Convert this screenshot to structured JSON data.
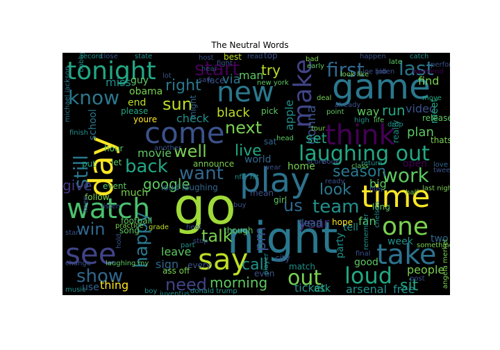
{
  "title": "The Neutral Words",
  "colors": {
    "background": "#000000",
    "palette": [
      "#440154",
      "#3b528b",
      "#21918c",
      "#5ec962",
      "#fde725"
    ]
  },
  "words": [
    {
      "text": "go",
      "color": "#a0da39"
    },
    {
      "text": "night",
      "color": "#2a788e"
    },
    {
      "text": "game",
      "color": "#2a788e"
    },
    {
      "text": "time",
      "color": "#fde725"
    },
    {
      "text": "day",
      "color": "#fde725"
    },
    {
      "text": "play",
      "color": "#2c728e"
    },
    {
      "text": "see",
      "color": "#414487"
    },
    {
      "text": "watch",
      "color": "#4ac16d"
    },
    {
      "text": "say",
      "color": "#bddf26"
    },
    {
      "text": "take",
      "color": "#2c728e"
    },
    {
      "text": "come",
      "color": "#3b528b"
    },
    {
      "text": "new",
      "color": "#2a788e"
    },
    {
      "text": "think",
      "color": "#440154"
    },
    {
      "text": "tonight",
      "color": "#22a884"
    },
    {
      "text": "make",
      "color": "#414487"
    },
    {
      "text": "one",
      "color": "#7ad151"
    },
    {
      "text": "laughing out",
      "color": "#22a884"
    },
    {
      "text": "first",
      "color": "#31688e"
    },
    {
      "text": "last",
      "color": "#2a788e"
    },
    {
      "text": "start",
      "color": "#440154"
    },
    {
      "text": "know",
      "color": "#2a788e"
    },
    {
      "text": "still",
      "color": "#2a788e"
    },
    {
      "text": "loud",
      "color": "#22a884"
    },
    {
      "text": "out",
      "color": "#7ad151"
    },
    {
      "text": "work",
      "color": "#5ec962"
    },
    {
      "text": "team",
      "color": "#21918c"
    },
    {
      "text": "talk",
      "color": "#7ad151"
    },
    {
      "text": "back",
      "color": "#22a884"
    },
    {
      "text": "want",
      "color": "#31688e"
    },
    {
      "text": "well",
      "color": "#7ad151"
    },
    {
      "text": "win",
      "color": "#31688e"
    },
    {
      "text": "happy",
      "color": "#2a788e"
    },
    {
      "text": "show",
      "color": "#31688e"
    },
    {
      "text": "need",
      "color": "#414487"
    },
    {
      "text": "call",
      "color": "#21918c"
    },
    {
      "text": "morning",
      "color": "#5ec962"
    },
    {
      "text": "next",
      "color": "#7ad151"
    },
    {
      "text": "live",
      "color": "#22a884"
    },
    {
      "text": "season",
      "color": "#2a788e"
    },
    {
      "text": "sun",
      "color": "#bddf26"
    },
    {
      "text": "right",
      "color": "#2a788e"
    },
    {
      "text": "pm",
      "color": "#3b528b"
    },
    {
      "text": "us",
      "color": "#31688e"
    },
    {
      "text": "year",
      "color": "#482878"
    },
    {
      "text": "look",
      "color": "#2a788e"
    },
    {
      "text": "run",
      "color": "#22a884"
    },
    {
      "text": "google",
      "color": "#5ec962"
    },
    {
      "text": "give",
      "color": "#443983"
    },
    {
      "text": "sit",
      "color": "#22a884"
    },
    {
      "text": "try",
      "color": "#bddf26"
    },
    {
      "text": "gonna",
      "color": "#3b528b"
    },
    {
      "text": "via",
      "color": "#2a788e"
    },
    {
      "text": "set",
      "color": "#22a884"
    },
    {
      "text": "find",
      "color": "#7ad151"
    },
    {
      "text": "plan",
      "color": "#5ec962"
    },
    {
      "text": "people",
      "color": "#7ad151"
    },
    {
      "text": "ticket",
      "color": "#21918c"
    },
    {
      "text": "arsenal",
      "color": "#21918c"
    },
    {
      "text": "free",
      "color": "#21918c"
    },
    {
      "text": "video",
      "color": "#3b528b"
    },
    {
      "text": "meet",
      "color": "#22a884"
    },
    {
      "text": "black",
      "color": "#bddf26"
    },
    {
      "text": "movie",
      "color": "#5ec962"
    },
    {
      "text": "thing",
      "color": "#fde725"
    },
    {
      "text": "check",
      "color": "#21918c"
    },
    {
      "text": "sign",
      "color": "#31688e"
    },
    {
      "text": "leave",
      "color": "#5ec962"
    },
    {
      "text": "apple",
      "color": "#21918c"
    },
    {
      "text": "way",
      "color": "#5ec962"
    },
    {
      "text": "fan",
      "color": "#5ec962"
    },
    {
      "text": "home",
      "color": "#7ad151"
    },
    {
      "text": "week",
      "color": "#21918c"
    },
    {
      "text": "school",
      "color": "#2a788e"
    },
    {
      "text": "end",
      "color": "#bddf26"
    },
    {
      "text": "man",
      "color": "#5ec962"
    },
    {
      "text": "miss",
      "color": "#21918c"
    },
    {
      "text": "guy",
      "color": "#5ec962"
    },
    {
      "text": "obama",
      "color": "#7ad151"
    },
    {
      "text": "tell",
      "color": "#21918c"
    },
    {
      "text": "lead",
      "color": "#31688e"
    },
    {
      "text": "two",
      "color": "#31688e"
    },
    {
      "text": "big",
      "color": "#5ec962"
    },
    {
      "text": "good",
      "color": "#5ec962"
    },
    {
      "text": "open",
      "color": "#440154"
    },
    {
      "text": "party",
      "color": "#21918c"
    },
    {
      "text": "even",
      "color": "#3b528b"
    },
    {
      "text": "ask",
      "color": "#22a884"
    },
    {
      "text": "hope",
      "color": "#fde725"
    },
    {
      "text": "sat",
      "color": "#31688e"
    },
    {
      "text": "use",
      "color": "#31688e"
    },
    {
      "text": "much",
      "color": "#7ad151"
    },
    {
      "text": "event",
      "color": "#5ec962"
    },
    {
      "text": "follow",
      "color": "#7ad151"
    },
    {
      "text": "youre",
      "color": "#fde725"
    },
    {
      "text": "please",
      "color": "#22a884"
    },
    {
      "text": "might",
      "color": "#31688e"
    },
    {
      "text": "world",
      "color": "#31688e"
    },
    {
      "text": "announce",
      "color": "#7ad151"
    },
    {
      "text": "though",
      "color": "#5ec962"
    },
    {
      "text": "pick",
      "color": "#5ec962"
    },
    {
      "text": "release",
      "color": "#5ec962"
    },
    {
      "text": "thats",
      "color": "#7ad151"
    },
    {
      "text": "loud laughing",
      "color": "#31688e"
    },
    {
      "text": "football",
      "color": "#5ec962"
    },
    {
      "text": "song",
      "color": "#5ec962"
    },
    {
      "text": "grade",
      "color": "#bddf26"
    },
    {
      "text": "best",
      "color": "#bddf26"
    },
    {
      "text": "top",
      "color": "#3b528b"
    },
    {
      "text": "face",
      "color": "#3b528b"
    },
    {
      "text": "new york",
      "color": "#5ec962"
    },
    {
      "text": "look like",
      "color": "#7ad151"
    },
    {
      "text": "let",
      "color": "#5ec962"
    },
    {
      "text": "hour",
      "color": "#5ec962"
    },
    {
      "text": "put",
      "color": "#22a884"
    },
    {
      "text": "donald trump",
      "color": "#21918c"
    },
    {
      "text": "ass off",
      "color": "#7ad151"
    },
    {
      "text": "every",
      "color": "#3b528b"
    },
    {
      "text": "match",
      "color": "#21918c"
    },
    {
      "text": "city",
      "color": "#3b528b"
    },
    {
      "text": "laughing my",
      "color": "#5ec962"
    },
    {
      "text": "girl",
      "color": "#5ec962"
    },
    {
      "text": "really",
      "color": "#21918c"
    },
    {
      "text": "long",
      "color": "#5ec962"
    },
    {
      "text": "half",
      "color": "#7ad151"
    },
    {
      "text": "last night",
      "color": "#7ad151"
    },
    {
      "text": "something",
      "color": "#7ad151"
    },
    {
      "text": "michael jackson",
      "color": "#2a788e"
    },
    {
      "text": "record",
      "color": "#21918c"
    },
    {
      "text": "close",
      "color": "#3b528b"
    },
    {
      "text": "state",
      "color": "#21918c"
    },
    {
      "text": "catch",
      "color": "#21918c"
    },
    {
      "text": "late",
      "color": "#5ec962"
    },
    {
      "text": "bad",
      "color": "#7ad151"
    },
    {
      "text": "early",
      "color": "#5ec962"
    },
    {
      "text": "deal",
      "color": "#7ad151"
    },
    {
      "text": "already",
      "color": "#3b528b"
    },
    {
      "text": "move",
      "color": "#22a884"
    },
    {
      "text": "point",
      "color": "#5ec962"
    },
    {
      "text": "head",
      "color": "#5ec962"
    },
    {
      "text": "score",
      "color": "#3b528b"
    },
    {
      "text": "book",
      "color": "#3b528b"
    },
    {
      "text": "return",
      "color": "#21918c"
    },
    {
      "text": "class",
      "color": "#5ec962"
    },
    {
      "text": "tour",
      "color": "#7ad151"
    },
    {
      "text": "high",
      "color": "#21918c"
    },
    {
      "text": "life",
      "color": "#5ec962"
    },
    {
      "text": "drop",
      "color": "#21918c"
    },
    {
      "text": "love",
      "color": "#31688e"
    },
    {
      "text": "tweet",
      "color": "#3b528b"
    },
    {
      "text": "weekend",
      "color": "#440154"
    },
    {
      "text": "finish",
      "color": "#21918c"
    },
    {
      "text": "nfl",
      "color": "#21918c"
    },
    {
      "text": "hit",
      "color": "#21918c"
    },
    {
      "text": "wear",
      "color": "#3b528b"
    },
    {
      "text": "mean",
      "color": "#3b528b"
    },
    {
      "text": "buy",
      "color": "#3b528b"
    },
    {
      "text": "ready",
      "color": "#3b528b"
    },
    {
      "text": "film",
      "color": "#3b528b"
    },
    {
      "text": "star",
      "color": "#3b528b"
    },
    {
      "text": "practice",
      "color": "#7ad151"
    },
    {
      "text": "heat",
      "color": "#3b528b"
    },
    {
      "text": "part",
      "color": "#21918c"
    },
    {
      "text": "stop",
      "color": "#3b528b"
    },
    {
      "text": "change",
      "color": "#3b528b"
    },
    {
      "text": "music",
      "color": "#21918c"
    },
    {
      "text": "boy",
      "color": "#21918c"
    },
    {
      "text": "juventus",
      "color": "#21918c"
    },
    {
      "text": "remember",
      "color": "#21918c"
    },
    {
      "text": "final",
      "color": "#3b528b"
    },
    {
      "text": "post",
      "color": "#3b528b"
    },
    {
      "text": "angela merkel",
      "color": "#7ad151"
    },
    {
      "text": "player",
      "color": "#21918c"
    },
    {
      "text": "chelsea",
      "color": "#21918c"
    },
    {
      "text": "hold",
      "color": "#3b528b"
    },
    {
      "text": "keep",
      "color": "#3b528b"
    },
    {
      "text": "listen",
      "color": "#3b528b"
    },
    {
      "text": "another",
      "color": "#3b528b"
    },
    {
      "text": "saw",
      "color": "#3b528b"
    },
    {
      "text": "lot",
      "color": "#3b528b"
    },
    {
      "text": "bobby jindal",
      "color": "#21918c"
    },
    {
      "text": "perform",
      "color": "#3b528b"
    },
    {
      "text": "happen",
      "color": "#3b528b"
    },
    {
      "text": "job",
      "color": "#3b528b"
    },
    {
      "text": "joe biden",
      "color": "#3b528b"
    },
    {
      "text": "read",
      "color": "#3b528b"
    },
    {
      "text": "fight",
      "color": "#3b528b"
    },
    {
      "text": "hear",
      "color": "#3b528b"
    },
    {
      "text": "host",
      "color": "#3b528b"
    }
  ]
}
